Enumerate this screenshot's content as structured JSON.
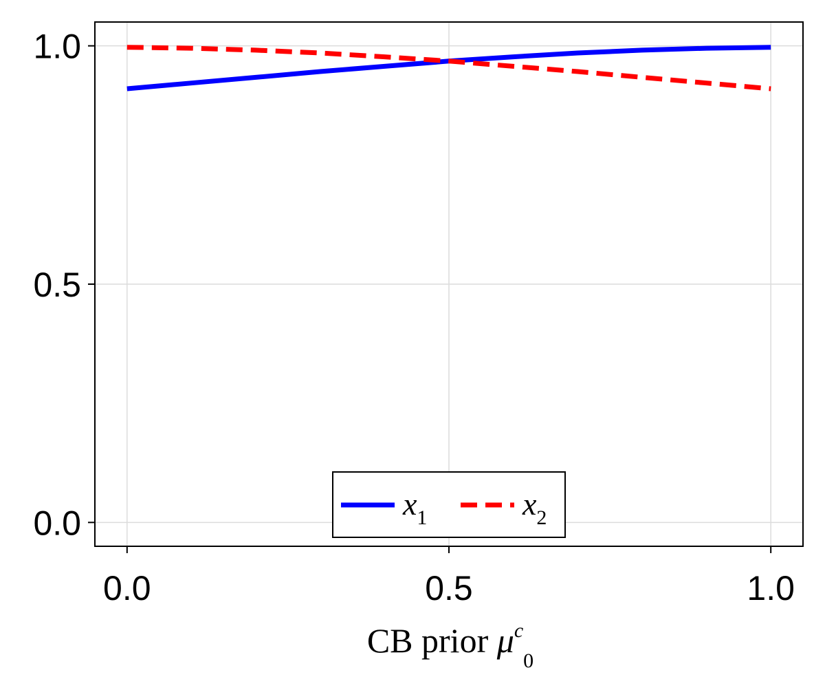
{
  "chart_data": {
    "type": "line",
    "xlabel_main": "CB prior ",
    "xlabel_symbol": "μ",
    "xlabel_sub": "0",
    "xlabel_sup": "c",
    "ylabel": "",
    "xlim": [
      -0.05,
      1.05
    ],
    "ylim": [
      -0.05,
      1.05
    ],
    "x_ticks": [
      0.0,
      0.5,
      1.0
    ],
    "x_tick_labels": [
      "0.0",
      "0.5",
      "1.0"
    ],
    "y_ticks": [
      0.0,
      0.5,
      1.0
    ],
    "y_tick_labels": [
      "0.0",
      "0.5",
      "1.0"
    ],
    "grid": true,
    "legend_placement": "bottom-center",
    "series": [
      {
        "name": "x",
        "name_sub": "1",
        "color": "#0000ff",
        "style": "solid",
        "x": [
          0.0,
          0.1,
          0.2,
          0.3,
          0.4,
          0.5,
          0.6,
          0.7,
          0.8,
          0.9,
          1.0
        ],
        "y": [
          0.91,
          0.922,
          0.934,
          0.946,
          0.957,
          0.968,
          0.977,
          0.985,
          0.991,
          0.995,
          0.997
        ]
      },
      {
        "name": "x",
        "name_sub": "2",
        "color": "#ff0000",
        "style": "dashed",
        "x": [
          0.0,
          0.1,
          0.2,
          0.3,
          0.4,
          0.5,
          0.6,
          0.7,
          0.8,
          0.9,
          1.0
        ],
        "y": [
          0.997,
          0.995,
          0.991,
          0.985,
          0.977,
          0.968,
          0.957,
          0.946,
          0.934,
          0.922,
          0.91
        ]
      }
    ]
  }
}
